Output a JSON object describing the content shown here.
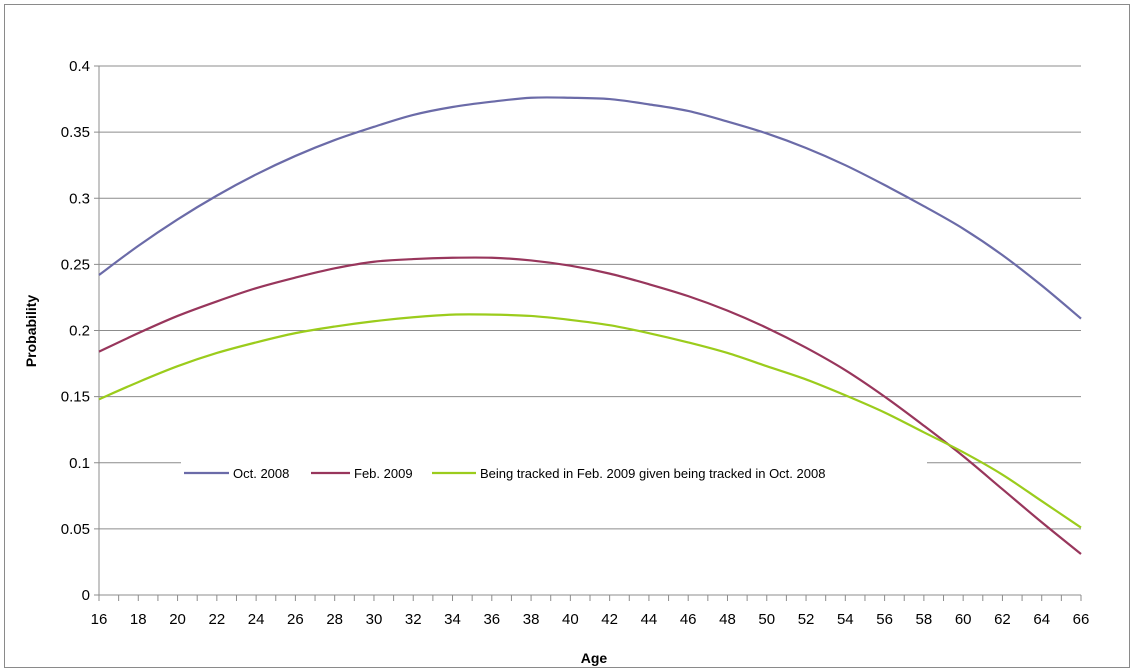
{
  "chart_data": {
    "type": "line",
    "title": "",
    "xlabel": "Age",
    "ylabel": "Probability",
    "xlim": [
      16,
      66
    ],
    "ylim": [
      0,
      0.4
    ],
    "x_ticks": [
      16,
      18,
      20,
      22,
      24,
      26,
      28,
      30,
      32,
      34,
      36,
      38,
      40,
      42,
      44,
      46,
      48,
      50,
      52,
      54,
      56,
      58,
      60,
      62,
      64,
      66
    ],
    "y_ticks": [
      0,
      0.05,
      0.1,
      0.15,
      0.2,
      0.25,
      0.3,
      0.35,
      0.4
    ],
    "y_tick_labels": [
      "0",
      "0.05",
      "0.1",
      "0.15",
      "0.2",
      "0.25",
      "0.3",
      "0.35",
      "0.4"
    ],
    "grid": "horizontal",
    "legend_position": "inside-lower-center",
    "series": [
      {
        "name": "Oct. 2008",
        "color": "#6b6ba8",
        "points": [
          [
            16,
            0.242
          ],
          [
            18,
            0.264
          ],
          [
            20,
            0.284
          ],
          [
            22,
            0.302
          ],
          [
            24,
            0.318
          ],
          [
            26,
            0.332
          ],
          [
            28,
            0.344
          ],
          [
            30,
            0.354
          ],
          [
            32,
            0.363
          ],
          [
            34,
            0.369
          ],
          [
            36,
            0.373
          ],
          [
            38,
            0.376
          ],
          [
            40,
            0.376
          ],
          [
            42,
            0.375
          ],
          [
            44,
            0.371
          ],
          [
            46,
            0.366
          ],
          [
            48,
            0.358
          ],
          [
            50,
            0.349
          ],
          [
            52,
            0.338
          ],
          [
            54,
            0.325
          ],
          [
            56,
            0.31
          ],
          [
            58,
            0.294
          ],
          [
            60,
            0.277
          ],
          [
            62,
            0.257
          ],
          [
            64,
            0.234
          ],
          [
            66,
            0.209
          ]
        ]
      },
      {
        "name": "Feb. 2009",
        "color": "#98365c",
        "points": [
          [
            16,
            0.184
          ],
          [
            18,
            0.198
          ],
          [
            20,
            0.211
          ],
          [
            22,
            0.222
          ],
          [
            24,
            0.232
          ],
          [
            26,
            0.24
          ],
          [
            28,
            0.247
          ],
          [
            30,
            0.252
          ],
          [
            32,
            0.254
          ],
          [
            34,
            0.255
          ],
          [
            36,
            0.255
          ],
          [
            38,
            0.253
          ],
          [
            40,
            0.249
          ],
          [
            42,
            0.243
          ],
          [
            44,
            0.235
          ],
          [
            46,
            0.226
          ],
          [
            48,
            0.215
          ],
          [
            50,
            0.202
          ],
          [
            52,
            0.187
          ],
          [
            54,
            0.17
          ],
          [
            56,
            0.15
          ],
          [
            58,
            0.128
          ],
          [
            60,
            0.105
          ],
          [
            62,
            0.08
          ],
          [
            64,
            0.055
          ],
          [
            66,
            0.031
          ]
        ]
      },
      {
        "name": "Being tracked in Feb. 2009 given being tracked in Oct. 2008",
        "color": "#9bcc1c",
        "points": [
          [
            16,
            0.148
          ],
          [
            18,
            0.161
          ],
          [
            20,
            0.173
          ],
          [
            22,
            0.183
          ],
          [
            24,
            0.191
          ],
          [
            26,
            0.198
          ],
          [
            28,
            0.203
          ],
          [
            30,
            0.207
          ],
          [
            32,
            0.21
          ],
          [
            34,
            0.212
          ],
          [
            36,
            0.212
          ],
          [
            38,
            0.211
          ],
          [
            40,
            0.208
          ],
          [
            42,
            0.204
          ],
          [
            44,
            0.198
          ],
          [
            46,
            0.191
          ],
          [
            48,
            0.183
          ],
          [
            50,
            0.173
          ],
          [
            52,
            0.163
          ],
          [
            54,
            0.151
          ],
          [
            56,
            0.138
          ],
          [
            58,
            0.123
          ],
          [
            60,
            0.108
          ],
          [
            62,
            0.091
          ],
          [
            64,
            0.071
          ],
          [
            66,
            0.051
          ]
        ]
      }
    ]
  }
}
